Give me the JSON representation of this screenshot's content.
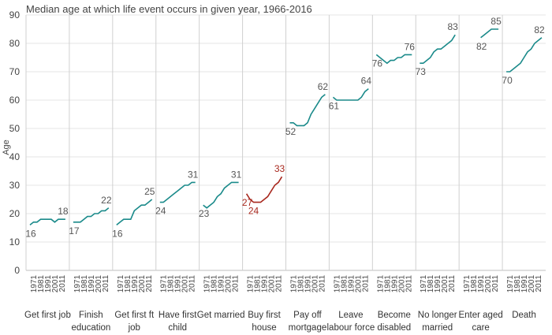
{
  "chart_data": {
    "type": "line",
    "title": "Median age at which life event occurs in given year, 1966-2016",
    "ylabel": "Age",
    "ylim": [
      0,
      90
    ],
    "yticks": [
      0,
      10,
      20,
      30,
      40,
      50,
      60,
      70,
      80,
      90
    ],
    "grid": true,
    "x": [
      1966,
      1971,
      1976,
      1981,
      1986,
      1991,
      1996,
      2001,
      2006,
      2011,
      2016
    ],
    "xtick_labels": [
      "1971",
      "1981",
      "1991",
      "2001",
      "2011"
    ],
    "colors": {
      "default": "#1a8a8a",
      "highlight": "#a8281e"
    },
    "series": [
      {
        "name": "Get first job",
        "color": "default",
        "values": [
          16,
          17,
          17,
          18,
          18,
          18,
          18,
          17,
          18,
          18,
          18
        ],
        "first_label": "16",
        "last_label": "18"
      },
      {
        "name": "Finish education",
        "color": "default",
        "values": [
          17,
          17,
          17,
          18,
          19,
          19,
          20,
          20,
          21,
          21,
          22
        ],
        "first_label": "17",
        "last_label": "22"
      },
      {
        "name": "Get first ft job",
        "color": "default",
        "values": [
          16,
          17,
          18,
          18,
          18,
          21,
          22,
          23,
          23,
          24,
          25
        ],
        "first_label": "16",
        "last_label": "25"
      },
      {
        "name": "Have first child",
        "color": "default",
        "values": [
          24,
          24,
          25,
          26,
          27,
          28,
          29,
          30,
          30,
          31,
          31
        ],
        "first_label": "24",
        "last_label": "31"
      },
      {
        "name": "Get married",
        "color": "default",
        "values": [
          23,
          22,
          23,
          24,
          26,
          27,
          29,
          30,
          31,
          31,
          31
        ],
        "first_label": "23",
        "last_label": "31"
      },
      {
        "name": "Buy first house",
        "color": "highlight",
        "values": [
          27,
          25,
          24,
          24,
          24,
          25,
          26,
          28,
          30,
          31,
          33
        ],
        "first_label": "27",
        "min_label": "24",
        "last_label": "33"
      },
      {
        "name": "Pay off mortgage",
        "color": "default",
        "values": [
          52,
          52,
          51,
          51,
          51,
          52,
          55,
          57,
          59,
          61,
          62
        ],
        "first_label": "52",
        "last_label": "62"
      },
      {
        "name": "Leave labour force",
        "color": "default",
        "values": [
          61,
          60,
          60,
          60,
          60,
          60,
          60,
          60,
          61,
          63,
          64
        ],
        "first_label": "61",
        "last_label": "64"
      },
      {
        "name": "Become disabled",
        "color": "default",
        "values": [
          76,
          75,
          74,
          73,
          74,
          74,
          75,
          75,
          76,
          76,
          76
        ],
        "first_label": "76",
        "last_label": "76"
      },
      {
        "name": "No longer married",
        "color": "default",
        "values": [
          73,
          73,
          74,
          75,
          77,
          78,
          78,
          79,
          80,
          81,
          83
        ],
        "first_label": "73",
        "last_label": "83"
      },
      {
        "name": "Enter aged care",
        "color": "default",
        "values": [
          null,
          null,
          null,
          null,
          null,
          82,
          83,
          84,
          85,
          85,
          85
        ],
        "first_label": "82",
        "last_label": "85"
      },
      {
        "name": "Death",
        "color": "default",
        "values": [
          70,
          70,
          71,
          72,
          73,
          75,
          77,
          78,
          80,
          81,
          82
        ],
        "first_label": "70",
        "last_label": "82"
      }
    ],
    "category_labels": [
      [
        "Get first job"
      ],
      [
        "Finish",
        "education"
      ],
      [
        "Get first ft",
        "job"
      ],
      [
        "Have first",
        "child"
      ],
      [
        "Get married"
      ],
      [
        "Buy first",
        "house"
      ],
      [
        "Pay off",
        "mortgage"
      ],
      [
        "Leave",
        "labour force"
      ],
      [
        "Become",
        "disabled"
      ],
      [
        "No longer",
        "married"
      ],
      [
        "Enter aged",
        "care"
      ],
      [
        "Death"
      ]
    ]
  }
}
